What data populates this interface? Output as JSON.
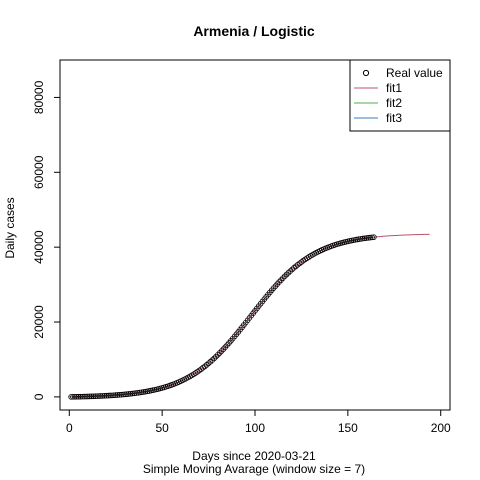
{
  "chart_data": {
    "type": "scatter",
    "title": "Armenia / Logistic",
    "xlabel": "Days since 2020-03-21",
    "subtitle": "Simple Moving Avarage (window size = 7)",
    "ylabel": "Daily cases",
    "xlim": [
      -5,
      205
    ],
    "ylim": [
      -3500,
      90000
    ],
    "x_ticks": [
      0,
      50,
      100,
      150,
      200
    ],
    "y_ticks": [
      0,
      20000,
      40000,
      60000,
      80000
    ],
    "legend": {
      "position": "top-right",
      "entries": [
        {
          "label": "Real value",
          "kind": "point",
          "color": "#000000"
        },
        {
          "label": "fit1",
          "kind": "line",
          "color": "#c0506a"
        },
        {
          "label": "fit2",
          "kind": "line",
          "color": "#4daf4a"
        },
        {
          "label": "fit3",
          "kind": "line",
          "color": "#377eb8"
        }
      ]
    },
    "logistic_params": {
      "K": 43600,
      "r": 0.058,
      "t0": 98
    }
  }
}
